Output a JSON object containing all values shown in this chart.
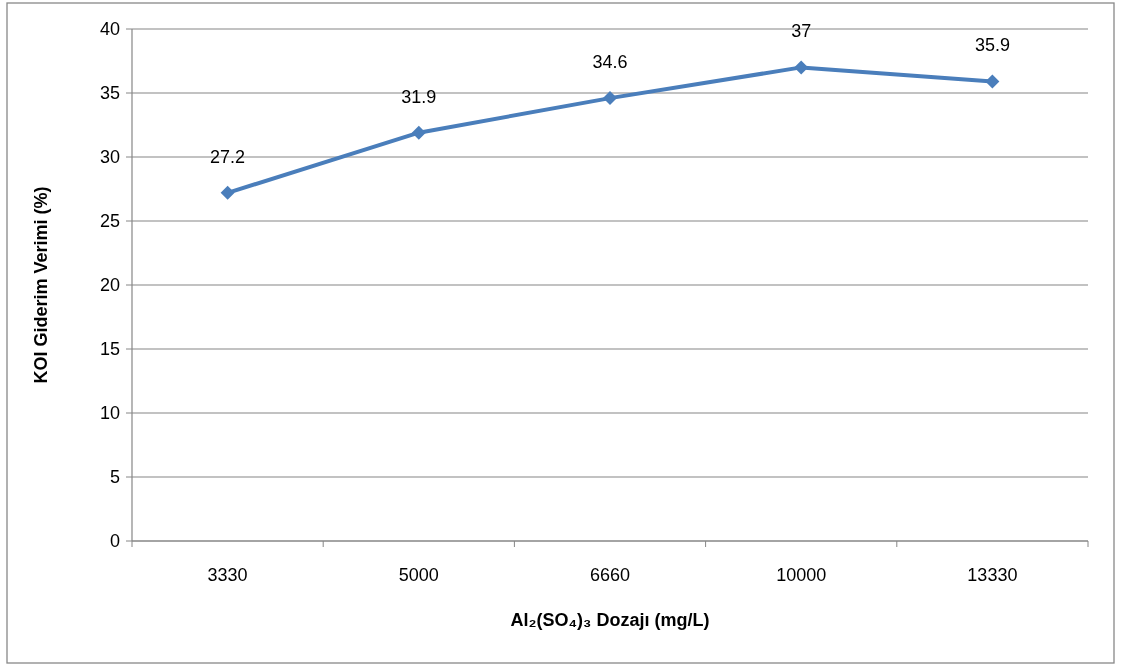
{
  "chart_data": {
    "type": "line",
    "xlabel": "Al₂(SO₄)₃ Dozajı (mg/L)",
    "ylabel": "KOI Giderim Verimi (%)",
    "categories": [
      "3330",
      "5000",
      "6660",
      "10000",
      "13330"
    ],
    "series": [
      {
        "color": "#4a7ebb",
        "values": [
          27.2,
          31.9,
          34.6,
          37,
          35.9
        ]
      }
    ],
    "ylim": [
      0,
      40
    ],
    "yticks": [
      0,
      5,
      10,
      15,
      20,
      25,
      30,
      35,
      40
    ],
    "grid": "y",
    "marker": "diamond",
    "line_style": "solid",
    "data_labels": true
  }
}
